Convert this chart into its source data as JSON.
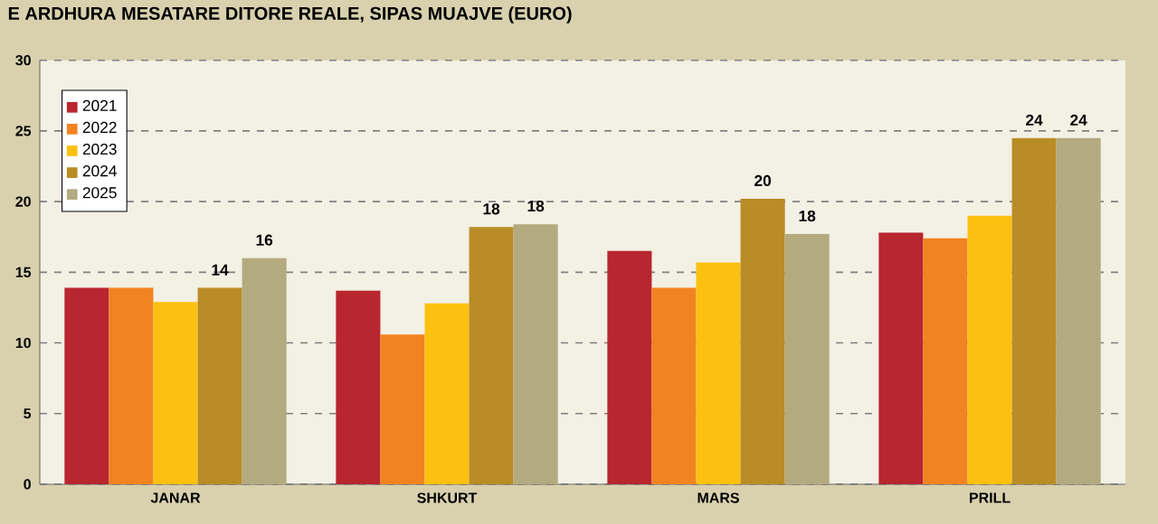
{
  "chart_data": {
    "type": "bar",
    "title": "E ARDHURA MESATARE DITORE REALE, SIPAS MUAJVE (EURO)",
    "categories": [
      "JANAR",
      "SHKURT",
      "MARS",
      "PRILL"
    ],
    "series": [
      {
        "name": "2021",
        "color": "#b8262f",
        "values": [
          13.9,
          13.7,
          16.5,
          17.8
        ]
      },
      {
        "name": "2022",
        "color": "#f28321",
        "values": [
          13.9,
          10.6,
          13.9,
          17.4
        ]
      },
      {
        "name": "2023",
        "color": "#fcc010",
        "values": [
          12.9,
          12.8,
          15.7,
          19.0
        ]
      },
      {
        "name": "2024",
        "color": "#b98c26",
        "values": [
          13.9,
          18.2,
          20.2,
          24.5
        ],
        "value_labels": [
          "14",
          "18",
          "20",
          "24"
        ]
      },
      {
        "name": "2025",
        "color": "#b4aa80",
        "values": [
          16.0,
          18.4,
          17.7,
          24.5
        ],
        "value_labels": [
          "16",
          "18",
          "18",
          "24"
        ]
      }
    ],
    "ylim": [
      0,
      30
    ],
    "yticks": [
      0,
      5,
      10,
      15,
      20,
      25,
      30
    ],
    "grid": "y",
    "legend": "top left"
  }
}
